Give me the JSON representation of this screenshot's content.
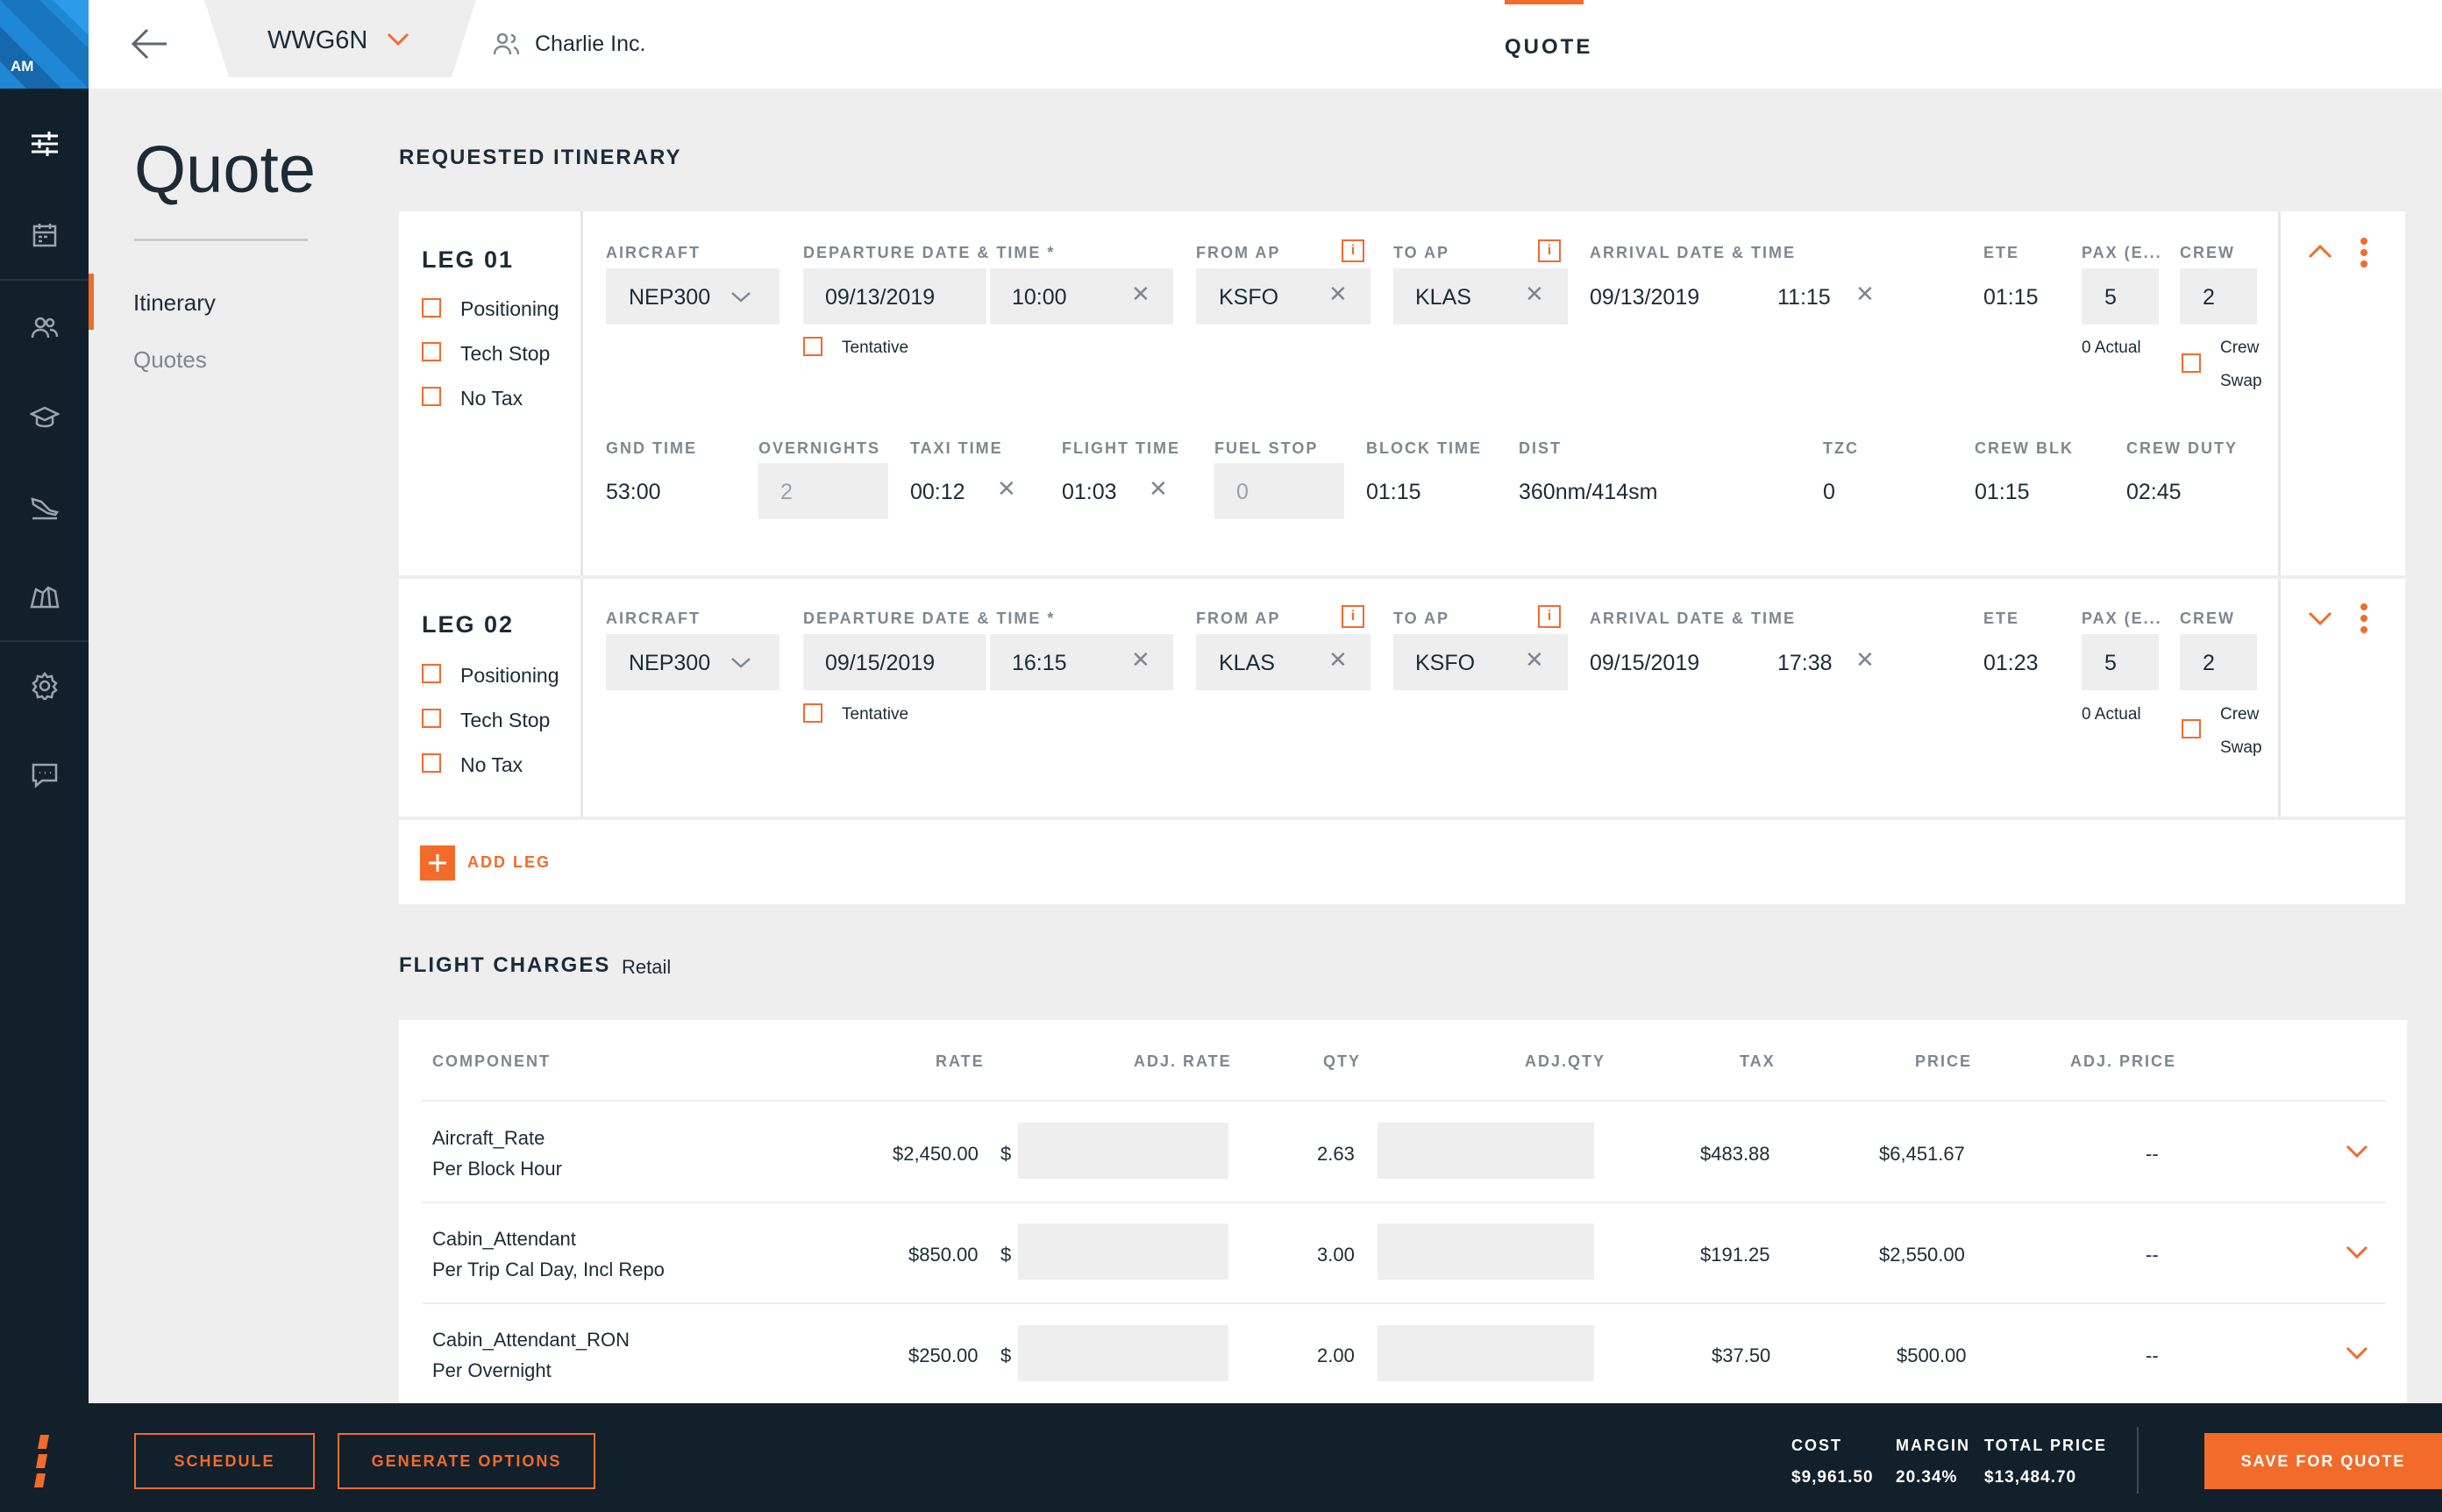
{
  "app": {
    "user_initials": "AM",
    "brand_color": "#f26b2b",
    "nav_bg": "#12202b",
    "logo_color": "#1e88d6"
  },
  "sidebar": {
    "icons": [
      "sliders-icon",
      "calendar-icon",
      "people-icon",
      "graduation-cap-icon",
      "airplane-icon",
      "map-icon",
      "gear-icon",
      "chat-icon"
    ]
  },
  "topbar": {
    "trip_ref": "WWG6N",
    "company": "Charlie Inc.",
    "tab": "QUOTE"
  },
  "leftnav": {
    "title": "Quote",
    "items": [
      "Itinerary",
      "Quotes"
    ]
  },
  "itinerary": {
    "heading": "REQUESTED ITINERARY",
    "labels": {
      "aircraft": "AIRCRAFT",
      "departure": "DEPARTURE DATE & TIME *",
      "from": "FROM AP",
      "to": "TO AP",
      "arrival": "ARRIVAL DATE & TIME",
      "ete": "ETE",
      "pax": "PAX (E...",
      "crew": "CREW",
      "gnd_time": "GND TIME",
      "overnights": "OVERNIGHTS",
      "taxi_time": "TAXI TIME",
      "flight_time": "FLIGHT TIME",
      "fuel_stop": "FUEL STOP",
      "block_time": "BLOCK TIME",
      "dist": "DIST",
      "tzc": "TZC",
      "crew_blk": "CREW BLK",
      "crew_duty": "CREW DUTY",
      "positioning": "Positioning",
      "tech_stop": "Tech Stop",
      "no_tax": "No Tax",
      "tentative": "Tentative",
      "crew_swap_1": "Crew",
      "crew_swap_2": "Swap"
    },
    "legs": [
      {
        "name": "LEG 01",
        "aircraft": "NEP300",
        "dep_date": "09/13/2019",
        "dep_time": "10:00",
        "from": "KSFO",
        "to": "KLAS",
        "arr_date": "09/13/2019",
        "arr_time": "11:15",
        "ete": "01:15",
        "pax": "5",
        "pax_actual": "0 Actual",
        "crew": "2",
        "gnd_time": "53:00",
        "overnights": "2",
        "taxi_time": "00:12",
        "flight_time": "01:03",
        "fuel_stop": "0",
        "block_time": "01:15",
        "dist": "360nm/414sm",
        "tzc": "0",
        "crew_blk": "01:15",
        "crew_duty": "02:45"
      },
      {
        "name": "LEG 02",
        "aircraft": "NEP300",
        "dep_date": "09/15/2019",
        "dep_time": "16:15",
        "from": "KLAS",
        "to": "KSFO",
        "arr_date": "09/15/2019",
        "arr_time": "17:38",
        "ete": "01:23",
        "pax": "5",
        "pax_actual": "0 Actual",
        "crew": "2"
      }
    ],
    "add_leg": "ADD LEG"
  },
  "charges": {
    "heading": "FLIGHT CHARGES",
    "mode": "Retail",
    "headers": {
      "component": "COMPONENT",
      "rate": "RATE",
      "adj_rate": "ADJ. RATE",
      "qty": "QTY",
      "adj_qty": "ADJ.QTY",
      "tax": "TAX",
      "price": "PRICE",
      "adj_price": "ADJ. PRICE"
    },
    "currency": "$",
    "rows": [
      {
        "name": "Aircraft_Rate",
        "unit": "Per Block Hour",
        "rate": "$2,450.00",
        "qty": "2.63",
        "tax": "$483.88",
        "price": "$6,451.67",
        "adj_price": "--"
      },
      {
        "name": "Cabin_Attendant",
        "unit": "Per Trip Cal Day, Incl Repo",
        "rate": "$850.00",
        "qty": "3.00",
        "tax": "$191.25",
        "price": "$2,550.00",
        "adj_price": "--"
      },
      {
        "name": "Cabin_Attendant_RON",
        "unit": "Per Overnight",
        "rate": "$250.00",
        "qty": "2.00",
        "tax": "$37.50",
        "price": "$500.00",
        "adj_price": "--"
      }
    ]
  },
  "footer": {
    "schedule": "SCHEDULE",
    "generate": "GENERATE OPTIONS",
    "cost_label": "COST",
    "cost": "$9,961.50",
    "margin_label": "MARGIN",
    "margin": "20.34%",
    "total_label": "TOTAL PRICE",
    "total": "$13,484.70",
    "save": "SAVE FOR QUOTE"
  }
}
